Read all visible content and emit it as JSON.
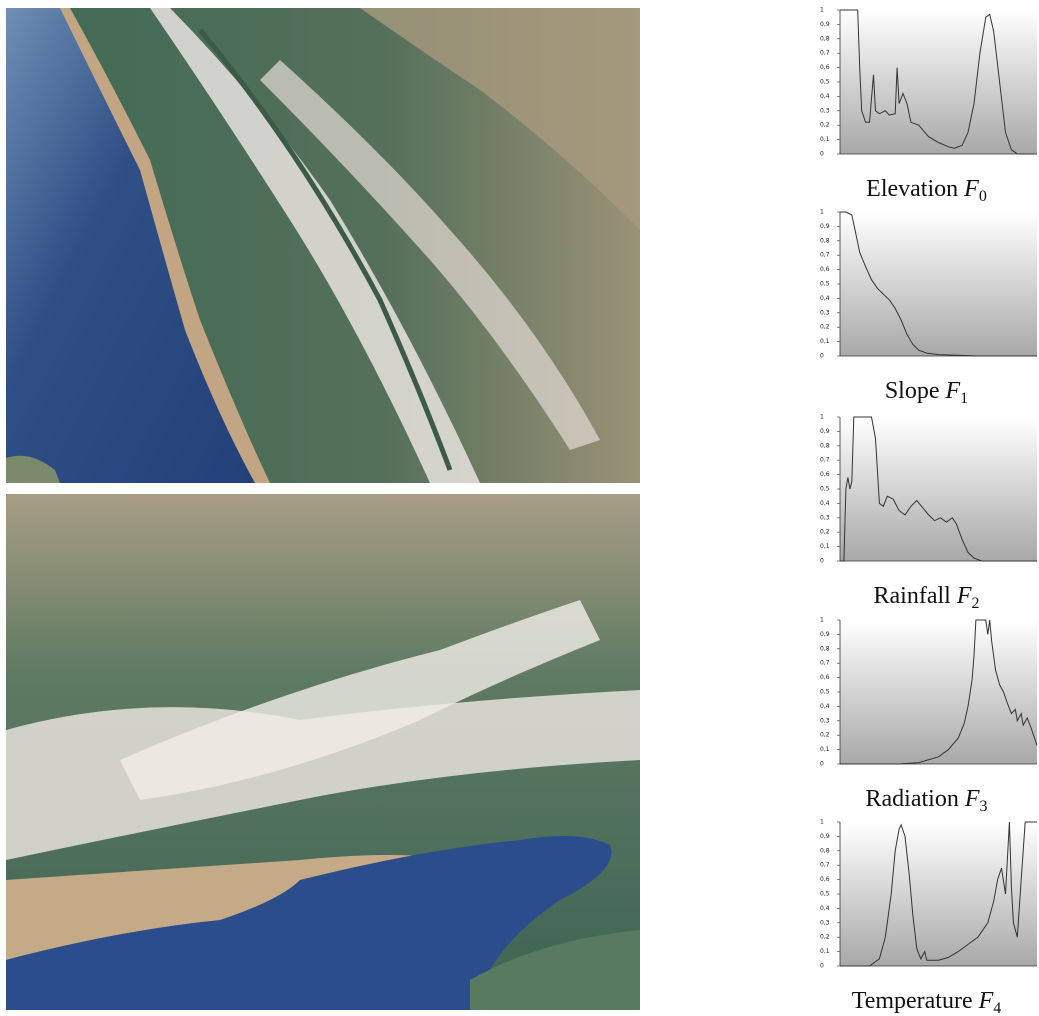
{
  "chart_data": [
    {
      "type": "line",
      "title": "Elevation",
      "symbol": "F",
      "subscript": "0",
      "color": "#333333",
      "x": [
        0,
        9,
        10,
        11,
        13,
        15,
        17,
        18,
        20,
        23,
        25,
        28,
        29,
        30,
        32,
        34,
        36,
        40,
        45,
        50,
        55,
        58,
        62,
        65,
        68,
        71,
        74,
        76,
        78,
        81,
        84,
        87,
        90,
        100
      ],
      "values": [
        1,
        1,
        0.6,
        0.3,
        0.22,
        0.22,
        0.55,
        0.3,
        0.28,
        0.3,
        0.27,
        0.28,
        0.6,
        0.35,
        0.42,
        0.35,
        0.22,
        0.2,
        0.12,
        0.08,
        0.05,
        0.04,
        0.06,
        0.15,
        0.35,
        0.7,
        0.95,
        0.97,
        0.85,
        0.5,
        0.15,
        0.03,
        0,
        0
      ],
      "xlim": [
        0,
        100
      ],
      "ylim": [
        0,
        1
      ],
      "yticks": [
        0,
        {
          "value": 0.1,
          "label": "0,1"
        },
        {
          "value": 0.2,
          "label": "0,2"
        },
        {
          "value": 0.3,
          "label": "0,3"
        },
        {
          "value": 0.4,
          "label": "0,4"
        },
        {
          "value": 0.5,
          "label": "0,5"
        },
        {
          "value": 0.6,
          "label": "0,6"
        },
        {
          "value": 0.7,
          "label": "0,7"
        },
        {
          "value": 0.8,
          "label": "0,8"
        },
        {
          "value": 0.9,
          "label": "0,9"
        },
        1
      ]
    },
    {
      "type": "line",
      "title": "Slope",
      "symbol": "F",
      "subscript": "1",
      "color": "#333333",
      "x": [
        0,
        3,
        6,
        8,
        10,
        13,
        16,
        19,
        22,
        25,
        28,
        31,
        34,
        37,
        40,
        44,
        50,
        60,
        70,
        100
      ],
      "values": [
        1,
        1,
        0.98,
        0.85,
        0.72,
        0.62,
        0.53,
        0.47,
        0.43,
        0.39,
        0.33,
        0.25,
        0.15,
        0.08,
        0.04,
        0.02,
        0.01,
        0.005,
        0,
        0
      ],
      "xlim": [
        0,
        100
      ],
      "ylim": [
        0,
        1
      ],
      "yticks": [
        0,
        {
          "value": 0.1,
          "label": "0,1"
        },
        {
          "value": 0.2,
          "label": "0,2"
        },
        {
          "value": 0.3,
          "label": "0,3"
        },
        {
          "value": 0.4,
          "label": "0,4"
        },
        {
          "value": 0.5,
          "label": "0,5"
        },
        {
          "value": 0.6,
          "label": "0,6"
        },
        {
          "value": 0.7,
          "label": "0,7"
        },
        {
          "value": 0.8,
          "label": "0,8"
        },
        {
          "value": 0.9,
          "label": "0,9"
        },
        1
      ]
    },
    {
      "type": "line",
      "title": "Rainfall",
      "symbol": "F",
      "subscript": "2",
      "color": "#333333",
      "x": [
        0,
        2,
        3,
        4,
        5,
        6,
        7,
        10,
        13,
        16,
        18,
        20,
        22,
        24,
        27,
        30,
        33,
        36,
        39,
        42,
        45,
        48,
        51,
        54,
        57,
        59,
        62,
        65,
        68,
        72,
        100
      ],
      "values": [
        0,
        0,
        0.5,
        0.58,
        0.5,
        0.55,
        1,
        1,
        1,
        1,
        0.85,
        0.4,
        0.38,
        0.45,
        0.43,
        0.35,
        0.32,
        0.38,
        0.42,
        0.37,
        0.32,
        0.28,
        0.3,
        0.27,
        0.3,
        0.26,
        0.15,
        0.06,
        0.02,
        0,
        0
      ],
      "xlim": [
        0,
        100
      ],
      "ylim": [
        0,
        1
      ],
      "yticks": [
        0,
        {
          "value": 0.1,
          "label": "0,1"
        },
        {
          "value": 0.2,
          "label": "0,2"
        },
        {
          "value": 0.3,
          "label": "0,3"
        },
        {
          "value": 0.4,
          "label": "0,4"
        },
        {
          "value": 0.5,
          "label": "0,5"
        },
        {
          "value": 0.6,
          "label": "0,6"
        },
        {
          "value": 0.7,
          "label": "0,7"
        },
        {
          "value": 0.8,
          "label": "0,8"
        },
        {
          "value": 0.9,
          "label": "0,9"
        },
        1
      ]
    },
    {
      "type": "line",
      "title": "Radiation",
      "symbol": "F",
      "subscript": "3",
      "color": "#333333",
      "x": [
        0,
        30,
        40,
        50,
        55,
        60,
        63,
        65,
        67,
        68,
        69,
        72,
        74,
        75,
        76,
        77,
        79,
        81,
        83,
        85,
        87,
        89,
        90,
        92,
        93,
        95,
        97,
        99,
        100
      ],
      "values": [
        0,
        0,
        0.01,
        0.05,
        0.1,
        0.18,
        0.28,
        0.4,
        0.58,
        0.75,
        1,
        1,
        1,
        0.9,
        1,
        0.85,
        0.65,
        0.55,
        0.5,
        0.42,
        0.35,
        0.38,
        0.3,
        0.35,
        0.27,
        0.32,
        0.25,
        0.17,
        0.13
      ],
      "xlim": [
        0,
        100
      ],
      "ylim": [
        0,
        1
      ],
      "yticks": [
        0,
        {
          "value": 0.1,
          "label": "0,1"
        },
        {
          "value": 0.2,
          "label": "0,2"
        },
        {
          "value": 0.3,
          "label": "0,3"
        },
        {
          "value": 0.4,
          "label": "0,4"
        },
        {
          "value": 0.5,
          "label": "0,5"
        },
        {
          "value": 0.6,
          "label": "0,6"
        },
        {
          "value": 0.7,
          "label": "0,7"
        },
        {
          "value": 0.8,
          "label": "0,8"
        },
        {
          "value": 0.9,
          "label": "0,9"
        },
        1
      ]
    },
    {
      "type": "line",
      "title": "Temperature",
      "symbol": "F",
      "subscript": "4",
      "color": "#333333",
      "x": [
        0,
        15,
        20,
        23,
        26,
        28,
        30,
        31,
        33,
        35,
        37,
        39,
        41,
        43,
        44,
        50,
        55,
        60,
        65,
        70,
        75,
        78,
        80,
        82,
        84,
        86,
        87,
        88,
        90,
        92,
        94,
        97,
        100
      ],
      "values": [
        0,
        0,
        0.05,
        0.2,
        0.5,
        0.8,
        0.95,
        0.98,
        0.9,
        0.65,
        0.35,
        0.12,
        0.05,
        0.1,
        0.04,
        0.04,
        0.06,
        0.1,
        0.15,
        0.2,
        0.3,
        0.45,
        0.6,
        0.68,
        0.5,
        1,
        0.55,
        0.3,
        0.2,
        0.6,
        1,
        1,
        1
      ],
      "xlim": [
        0,
        100
      ],
      "ylim": [
        0,
        1
      ],
      "yticks": [
        0,
        {
          "value": 0.1,
          "label": "0,1"
        },
        {
          "value": 0.2,
          "label": "0,2"
        },
        {
          "value": 0.3,
          "label": "0,3"
        },
        {
          "value": 0.4,
          "label": "0,4"
        },
        {
          "value": 0.5,
          "label": "0,5"
        },
        {
          "value": 0.6,
          "label": "0,6"
        },
        {
          "value": 0.7,
          "label": "0,7"
        },
        {
          "value": 0.8,
          "label": "0,8"
        },
        {
          "value": 0.9,
          "label": "0,9"
        },
        1
      ]
    }
  ]
}
